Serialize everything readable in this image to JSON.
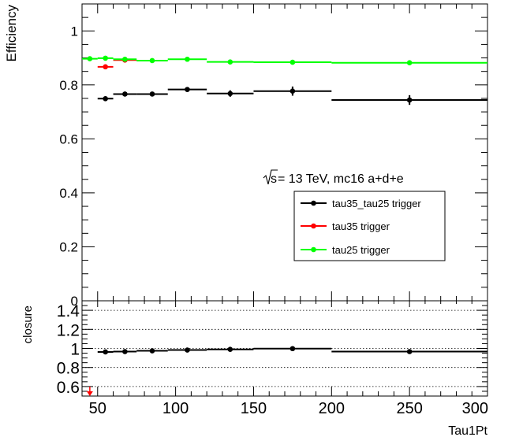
{
  "chart_data": [
    {
      "type": "scatter",
      "panel": "efficiency",
      "ylabel": "Efficiency",
      "xlim": [
        40,
        300
      ],
      "ylim": [
        0,
        1.1
      ],
      "yticks": [
        0,
        0.2,
        0.4,
        0.6,
        0.8,
        1
      ],
      "ytick_labels": [
        "0",
        "0.2",
        "0.4",
        "0.6",
        "0.8",
        "1"
      ],
      "annotation_sqrt": "s",
      "annotation_rest": " = 13 TeV, mc16 a+d+e",
      "legend_placement": "center-right",
      "series": [
        {
          "name": "tau35_tau25 trigger",
          "color": "#000000",
          "points": [
            {
              "xlo": 50,
              "xhi": 60,
              "x": 55,
              "y": 0.749,
              "err": 0.005
            },
            {
              "xlo": 60,
              "xhi": 75,
              "x": 67.5,
              "y": 0.766,
              "err": 0.005
            },
            {
              "xlo": 75,
              "xhi": 95,
              "x": 85,
              "y": 0.766,
              "err": 0.006
            },
            {
              "xlo": 95,
              "xhi": 120,
              "x": 107.5,
              "y": 0.783,
              "err": 0.007
            },
            {
              "xlo": 120,
              "xhi": 150,
              "x": 135,
              "y": 0.768,
              "err": 0.012
            },
            {
              "xlo": 150,
              "xhi": 200,
              "x": 175,
              "y": 0.777,
              "err": 0.017
            },
            {
              "xlo": 200,
              "xhi": 300,
              "x": 250,
              "y": 0.744,
              "err": 0.018
            }
          ]
        },
        {
          "name": "tau35 trigger",
          "color": "#ff0000",
          "points": [
            {
              "xlo": 50,
              "xhi": 60,
              "x": 55,
              "y": 0.867,
              "err": 0.004
            },
            {
              "xlo": 60,
              "xhi": 75,
              "x": 67.5,
              "y": 0.892,
              "err": 0.004
            }
          ]
        },
        {
          "name": "tau25 trigger",
          "color": "#00ff00",
          "points": [
            {
              "xlo": 40,
              "xhi": 50,
              "x": 45,
              "y": 0.897,
              "err": 0.003
            },
            {
              "xlo": 50,
              "xhi": 60,
              "x": 55,
              "y": 0.899,
              "err": 0.003
            },
            {
              "xlo": 60,
              "xhi": 75,
              "x": 67.5,
              "y": 0.895,
              "err": 0.003
            },
            {
              "xlo": 75,
              "xhi": 95,
              "x": 85,
              "y": 0.89,
              "err": 0.003
            },
            {
              "xlo": 95,
              "xhi": 120,
              "x": 107.5,
              "y": 0.895,
              "err": 0.004
            },
            {
              "xlo": 120,
              "xhi": 150,
              "x": 135,
              "y": 0.885,
              "err": 0.004
            },
            {
              "xlo": 150,
              "xhi": 200,
              "x": 175,
              "y": 0.884,
              "err": 0.004
            },
            {
              "xlo": 200,
              "xhi": 300,
              "x": 250,
              "y": 0.882,
              "err": 0.004
            }
          ]
        }
      ]
    },
    {
      "type": "scatter",
      "panel": "ratio",
      "ylabel": "closure",
      "xlabel": "Tau1Pt",
      "xlim": [
        40,
        300
      ],
      "ylim": [
        0.5,
        1.5
      ],
      "yticks": [
        0.6,
        0.8,
        1,
        1.2,
        1.4
      ],
      "ytick_labels": [
        "0.6",
        "0.8",
        "1",
        "1.2",
        "1.4"
      ],
      "xticks": [
        50,
        100,
        150,
        200,
        250,
        300
      ],
      "xtick_labels": [
        "50",
        "100",
        "150",
        "200",
        "250",
        "300"
      ],
      "dotted_grid_y": [
        0.6,
        0.8,
        1.0,
        1.2,
        1.4
      ],
      "series": [
        {
          "name": "",
          "color": "#000000",
          "points": [
            {
              "xlo": 50,
              "xhi": 60,
              "x": 55,
              "y": 0.963,
              "err": 0.008
            },
            {
              "xlo": 60,
              "xhi": 75,
              "x": 67.5,
              "y": 0.967,
              "err": 0.008
            },
            {
              "xlo": 75,
              "xhi": 95,
              "x": 85,
              "y": 0.975,
              "err": 0.008
            },
            {
              "xlo": 95,
              "xhi": 120,
              "x": 107.5,
              "y": 0.983,
              "err": 0.009
            },
            {
              "xlo": 120,
              "xhi": 150,
              "x": 135,
              "y": 0.99,
              "err": 0.011
            },
            {
              "xlo": 150,
              "xhi": 200,
              "x": 175,
              "y": 0.998,
              "err": 0.014
            },
            {
              "xlo": 200,
              "xhi": 300,
              "x": 250,
              "y": 0.967,
              "err": 0.016
            }
          ]
        }
      ],
      "out_of_range_arrow": {
        "x": 45,
        "color": "#ff0000"
      }
    }
  ]
}
